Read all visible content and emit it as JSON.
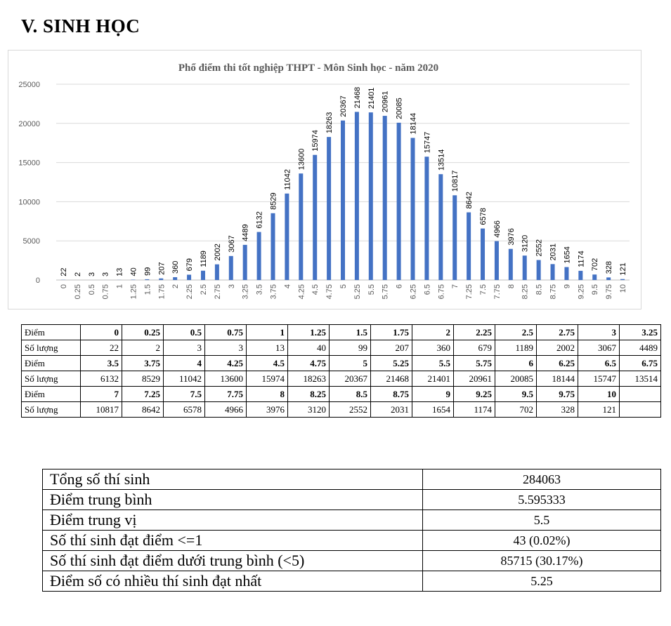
{
  "heading": "V.  SINH HỌC",
  "chart_data": {
    "type": "bar",
    "title": "Phổ điểm thi tốt nghiệp THPT - Môn Sinh học - năm 2020",
    "xlabel": "",
    "ylabel": "",
    "ylim": [
      0,
      25000
    ],
    "yticks": [
      "0",
      "5000",
      "10000",
      "15000",
      "20000",
      "25000"
    ],
    "grid": true,
    "bar_color": "#4472C4",
    "categories": [
      "0",
      "0.25",
      "0.5",
      "0.75",
      "1",
      "1.25",
      "1.5",
      "1.75",
      "2",
      "2.25",
      "2.5",
      "2.75",
      "3",
      "3.25",
      "3.5",
      "3.75",
      "4",
      "4.25",
      "4.5",
      "4.75",
      "5",
      "5.25",
      "5.5",
      "5.75",
      "6",
      "6.25",
      "6.5",
      "6.75",
      "7",
      "7.25",
      "7.5",
      "7.75",
      "8",
      "8.25",
      "8.5",
      "8.75",
      "9",
      "9.25",
      "9.5",
      "9.75",
      "10"
    ],
    "values": [
      22,
      2,
      3,
      3,
      13,
      40,
      99,
      207,
      360,
      679,
      1189,
      2002,
      3067,
      4489,
      6132,
      8529,
      11042,
      13600,
      15974,
      18263,
      20367,
      21468,
      21401,
      20961,
      20085,
      18144,
      15747,
      13514,
      10817,
      8642,
      6578,
      4966,
      3976,
      3120,
      2552,
      2031,
      1654,
      1174,
      702,
      328,
      121
    ]
  },
  "score_table": {
    "points_label": "Điểm",
    "count_label": "Số lượng",
    "rows": [
      {
        "points": [
          "0",
          "0.25",
          "0.5",
          "0.75",
          "1",
          "1.25",
          "1.5",
          "1.75",
          "2",
          "2.25",
          "2.5",
          "2.75",
          "3",
          "3.25"
        ],
        "counts": [
          "22",
          "2",
          "3",
          "3",
          "13",
          "40",
          "99",
          "207",
          "360",
          "679",
          "1189",
          "2002",
          "3067",
          "4489"
        ]
      },
      {
        "points": [
          "3.5",
          "3.75",
          "4",
          "4.25",
          "4.5",
          "4.75",
          "5",
          "5.25",
          "5.5",
          "5.75",
          "6",
          "6.25",
          "6.5",
          "6.75"
        ],
        "counts": [
          "6132",
          "8529",
          "11042",
          "13600",
          "15974",
          "18263",
          "20367",
          "21468",
          "21401",
          "20961",
          "20085",
          "18144",
          "15747",
          "13514"
        ]
      },
      {
        "points": [
          "7",
          "7.25",
          "7.5",
          "7.75",
          "8",
          "8.25",
          "8.5",
          "8.75",
          "9",
          "9.25",
          "9.5",
          "9.75",
          "10",
          ""
        ],
        "counts": [
          "10817",
          "8642",
          "6578",
          "4966",
          "3976",
          "3120",
          "2552",
          "2031",
          "1654",
          "1174",
          "702",
          "328",
          "121",
          ""
        ]
      }
    ]
  },
  "stats": [
    {
      "label": "Tổng số thí sinh",
      "value": "284063"
    },
    {
      "label": "Điểm trung bình",
      "value": "5.595333"
    },
    {
      "label": "Điểm trung vị",
      "value": "5.5"
    },
    {
      "label": "Số thí sinh đạt điểm <=1",
      "value": "43 (0.02%)"
    },
    {
      "label": "Số thí sinh đạt điểm dưới trung bình (<5)",
      "value": "85715 (30.17%)"
    },
    {
      "label": "Điểm số có nhiều thí sinh đạt nhất",
      "value": "5.25"
    }
  ]
}
